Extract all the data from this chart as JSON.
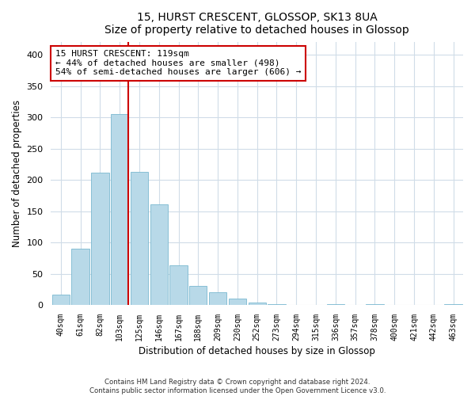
{
  "title": "15, HURST CRESCENT, GLOSSOP, SK13 8UA",
  "subtitle": "Size of property relative to detached houses in Glossop",
  "xlabel": "Distribution of detached houses by size in Glossop",
  "ylabel": "Number of detached properties",
  "bar_labels": [
    "40sqm",
    "61sqm",
    "82sqm",
    "103sqm",
    "125sqm",
    "146sqm",
    "167sqm",
    "188sqm",
    "209sqm",
    "230sqm",
    "252sqm",
    "273sqm",
    "294sqm",
    "315sqm",
    "336sqm",
    "357sqm",
    "378sqm",
    "400sqm",
    "421sqm",
    "442sqm",
    "463sqm"
  ],
  "bar_values": [
    17,
    90,
    211,
    305,
    213,
    161,
    63,
    30,
    20,
    10,
    4,
    1,
    0,
    0,
    1,
    0,
    1,
    0,
    0,
    0,
    2
  ],
  "bar_color": "#b8d9e8",
  "bar_edge_color": "#7ab8d0",
  "highlight_index": 3,
  "highlight_line_color": "#cc0000",
  "ylim": [
    0,
    420
  ],
  "yticks": [
    0,
    50,
    100,
    150,
    200,
    250,
    300,
    350,
    400
  ],
  "annotation_text_line1": "15 HURST CRESCENT: 119sqm",
  "annotation_text_line2": "← 44% of detached houses are smaller (498)",
  "annotation_text_line3": "54% of semi-detached houses are larger (606) →",
  "footer_line1": "Contains HM Land Registry data © Crown copyright and database right 2024.",
  "footer_line2": "Contains public sector information licensed under the Open Government Licence v3.0.",
  "background_color": "#ffffff",
  "plot_background": "#ffffff",
  "grid_color": "#d0dce8"
}
